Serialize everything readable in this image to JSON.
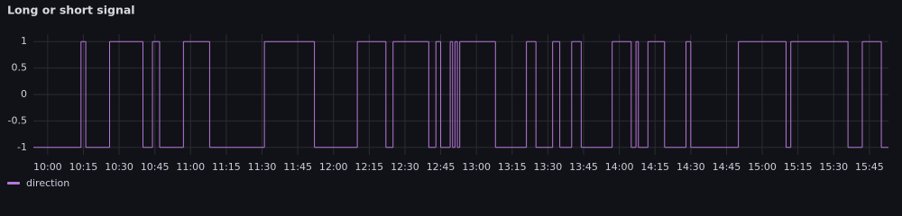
{
  "chart_data": {
    "type": "line",
    "title": "Long or short signal",
    "step": true,
    "x": [
      "09:54",
      "10:14",
      "10:16",
      "10:26",
      "10:40",
      "10:44",
      "10:47",
      "10:57",
      "11:08",
      "11:31",
      "11:52",
      "12:10",
      "12:22",
      "12:25",
      "12:40",
      "12:43",
      "12:45",
      "12:49",
      "12:50",
      "12:51",
      "12:52",
      "12:53",
      "13:08",
      "13:21",
      "13:25",
      "13:32",
      "13:35",
      "13:40",
      "13:44",
      "13:57",
      "14:05",
      "14:07",
      "14:08",
      "14:12",
      "14:19",
      "14:28",
      "14:30",
      "14:50",
      "15:10",
      "15:12",
      "15:36",
      "15:42",
      "15:50"
    ],
    "series": [
      {
        "name": "direction",
        "color": "#b877d9",
        "values": [
          -1,
          1,
          -1,
          1,
          -1,
          1,
          -1,
          1,
          -1,
          1,
          -1,
          1,
          -1,
          1,
          -1,
          1,
          -1,
          1,
          -1,
          1,
          -1,
          1,
          -1,
          1,
          -1,
          1,
          -1,
          1,
          -1,
          1,
          -1,
          1,
          -1,
          1,
          -1,
          1,
          -1,
          1,
          -1,
          1,
          -1,
          1,
          -1
        ]
      }
    ],
    "xlim": [
      "09:54",
      "15:53"
    ],
    "xticks": [
      "10:00",
      "10:15",
      "10:30",
      "10:45",
      "11:00",
      "11:15",
      "11:30",
      "11:45",
      "12:00",
      "12:15",
      "12:30",
      "12:45",
      "13:00",
      "13:15",
      "13:30",
      "13:45",
      "14:00",
      "14:15",
      "14:30",
      "14:45",
      "15:00",
      "15:15",
      "15:30",
      "15:45"
    ],
    "ylim": [
      -1.14,
      1.14
    ],
    "yticks": [
      1,
      0.5,
      0,
      -0.5,
      -1
    ],
    "grid": true,
    "legend": "bottom-left"
  }
}
